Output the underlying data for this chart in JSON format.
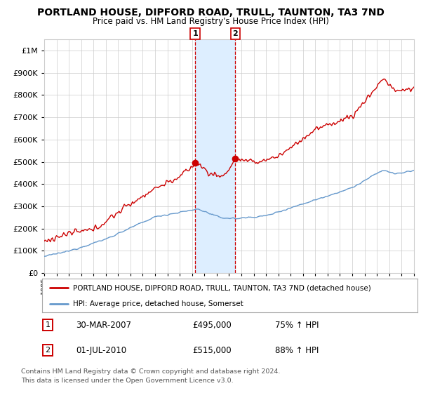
{
  "title": "PORTLAND HOUSE, DIPFORD ROAD, TRULL, TAUNTON, TA3 7ND",
  "subtitle": "Price paid vs. HM Land Registry's House Price Index (HPI)",
  "red_line_label": "PORTLAND HOUSE, DIPFORD ROAD, TRULL, TAUNTON, TA3 7ND (detached house)",
  "blue_line_label": "HPI: Average price, detached house, Somerset",
  "marker1_price": 495000,
  "marker2_price": 515000,
  "marker1_year": 2007.25,
  "marker2_year": 2010.5,
  "marker1_date_str": "30-MAR-2007",
  "marker2_date_str": "01-JUL-2010",
  "marker1_hpi": "75%",
  "marker2_hpi": "88%",
  "footer": "Contains HM Land Registry data © Crown copyright and database right 2024.\nThis data is licensed under the Open Government Licence v3.0.",
  "ylim": [
    0,
    1050000
  ],
  "xmin": 1995,
  "xmax": 2025,
  "background_color": "#ffffff",
  "grid_color": "#cccccc",
  "red_color": "#cc0000",
  "blue_color": "#6699cc",
  "shade_color": "#ddeeff"
}
